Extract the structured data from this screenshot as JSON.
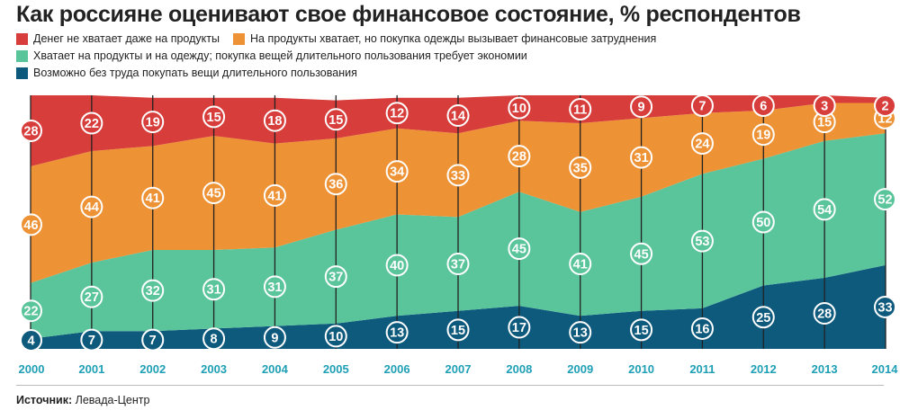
{
  "chart_data": {
    "type": "area",
    "stacked": true,
    "title": "Как россияне оценивают свое финансовое состояние, % респондентов",
    "categories": [
      "2000",
      "2001",
      "2002",
      "2003",
      "2004",
      "2005",
      "2006",
      "2007",
      "2008",
      "2009",
      "2010",
      "2011",
      "2012",
      "2013",
      "2014"
    ],
    "series": [
      {
        "name": "Возможно без труда покупать вещи длительного пользования",
        "color": "#0e5a7d",
        "values": [
          4,
          7,
          7,
          8,
          9,
          10,
          13,
          15,
          17,
          13,
          15,
          16,
          25,
          28,
          33
        ]
      },
      {
        "name": "Хватает на продукты и на одежду; покупка вещей длительного пользования требует экономии",
        "color": "#5ac49b",
        "values": [
          22,
          27,
          32,
          31,
          31,
          37,
          40,
          37,
          45,
          41,
          45,
          53,
          50,
          54,
          52
        ]
      },
      {
        "name": "На продукты хватает, но покупка одежды вызывает финансовые затруднения",
        "color": "#ee9236",
        "values": [
          46,
          44,
          41,
          45,
          41,
          36,
          34,
          33,
          28,
          35,
          31,
          24,
          19,
          15,
          12
        ]
      },
      {
        "name": "Денег не хватает даже на продукты",
        "color": "#d73d3b",
        "values": [
          28,
          22,
          19,
          15,
          18,
          15,
          12,
          14,
          10,
          11,
          9,
          7,
          6,
          3,
          2
        ]
      }
    ],
    "ylim": [
      0,
      100
    ],
    "xlabel": "",
    "ylabel": "%"
  },
  "legend_order": [
    3,
    2,
    1,
    0
  ],
  "source": {
    "label": "Источник:",
    "value": "Левада-Центр"
  },
  "colors": {
    "axis_text": "#1e9fb5",
    "vline": "#222222"
  }
}
